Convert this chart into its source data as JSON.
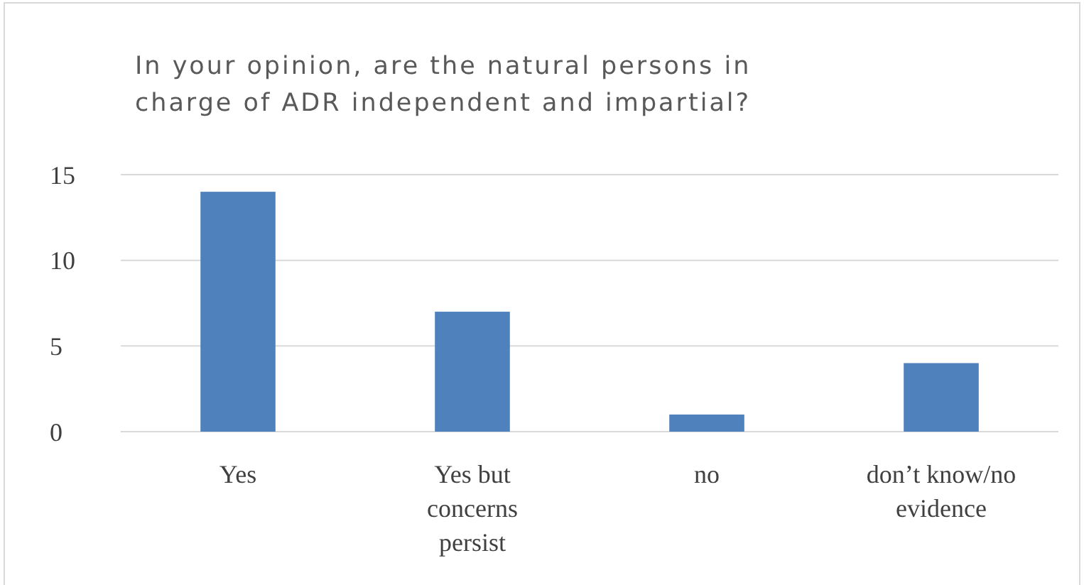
{
  "chart_data": {
    "type": "bar",
    "title": "In your opinion, are the natural persons in charge of ADR independent and impartial?",
    "categories": [
      "Yes",
      "Yes but concerns persist",
      "no",
      "don’t know/no evidence"
    ],
    "values": [
      14,
      7,
      1,
      4
    ],
    "color": "#4f81bd",
    "ylim": [
      0,
      15
    ],
    "yticks": [
      0,
      5,
      10,
      15
    ],
    "grid": "y"
  }
}
